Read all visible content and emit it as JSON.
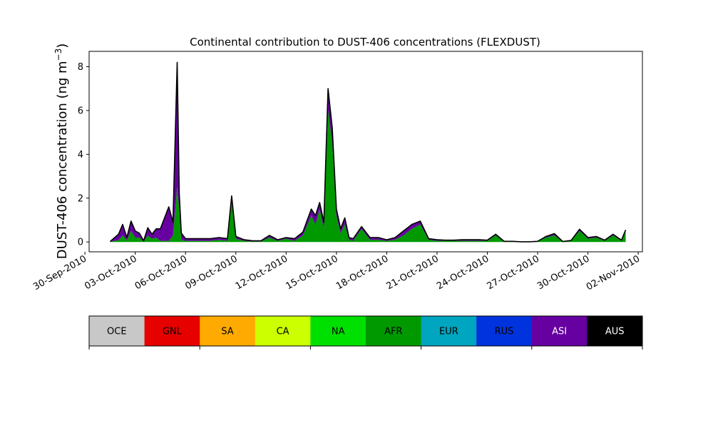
{
  "chart_data": {
    "type": "area",
    "title": "Continental contribution to DUST-406 concentrations (FLEXDUST)",
    "ylabel": "DUST-406 concentration (ng m",
    "ylabel_sup": "−3",
    "ylabel_close": ")",
    "xlabel": "",
    "ylim": [
      -0.45,
      8.7
    ],
    "y_ticks": [
      0,
      2,
      4,
      6,
      8
    ],
    "xlim": [
      "2010-09-30T06:00",
      "2010-11-02T06:00"
    ],
    "x_ticks": [
      "2010-09-30",
      "2010-10-03",
      "2010-10-06",
      "2010-10-09",
      "2010-10-12",
      "2010-10-15",
      "2010-10-18",
      "2010-10-21",
      "2010-10-24",
      "2010-10-27",
      "2010-10-30",
      "2010-11-02"
    ],
    "x_tick_labels": [
      "30-Sep-2010",
      "03-Oct-2010",
      "06-Oct-2010",
      "09-Oct-2010",
      "12-Oct-2010",
      "15-Oct-2010",
      "18-Oct-2010",
      "21-Oct-2010",
      "24-Oct-2010",
      "27-Oct-2010",
      "30-Oct-2010",
      "02-Nov-2010"
    ],
    "grid": false,
    "x": [
      "2010-10-01T12:00",
      "2010-10-02T00:00",
      "2010-10-02T06:00",
      "2010-10-02T12:00",
      "2010-10-02T18:00",
      "2010-10-03T00:00",
      "2010-10-03T06:00",
      "2010-10-03T12:00",
      "2010-10-03T18:00",
      "2010-10-04T00:00",
      "2010-10-04T06:00",
      "2010-10-04T12:00",
      "2010-10-05T00:00",
      "2010-10-05T06:00",
      "2010-10-05T12:00",
      "2010-10-05T15:00",
      "2010-10-05T18:00",
      "2010-10-06T00:00",
      "2010-10-06T12:00",
      "2010-10-07T00:00",
      "2010-10-07T12:00",
      "2010-10-08T00:00",
      "2010-10-08T12:00",
      "2010-10-08T18:00",
      "2010-10-09T00:00",
      "2010-10-09T12:00",
      "2010-10-10T00:00",
      "2010-10-10T12:00",
      "2010-10-11T00:00",
      "2010-10-11T12:00",
      "2010-10-12T00:00",
      "2010-10-12T12:00",
      "2010-10-13T00:00",
      "2010-10-13T12:00",
      "2010-10-13T18:00",
      "2010-10-14T00:00",
      "2010-10-14T06:00",
      "2010-10-14T12:00",
      "2010-10-14T18:00",
      "2010-10-15T00:00",
      "2010-10-15T06:00",
      "2010-10-15T12:00",
      "2010-10-15T18:00",
      "2010-10-16T00:00",
      "2010-10-16T12:00",
      "2010-10-17T00:00",
      "2010-10-17T12:00",
      "2010-10-18T00:00",
      "2010-10-18T12:00",
      "2010-10-19T00:00",
      "2010-10-19T12:00",
      "2010-10-20T00:00",
      "2010-10-20T12:00",
      "2010-10-21T00:00",
      "2010-10-21T12:00",
      "2010-10-22T00:00",
      "2010-10-22T12:00",
      "2010-10-23T00:00",
      "2010-10-23T12:00",
      "2010-10-24T00:00",
      "2010-10-24T12:00",
      "2010-10-25T00:00",
      "2010-10-25T12:00",
      "2010-10-26T00:00",
      "2010-10-26T12:00",
      "2010-10-27T00:00",
      "2010-10-27T12:00",
      "2010-10-28T00:00",
      "2010-10-28T12:00",
      "2010-10-29T00:00",
      "2010-10-29T12:00",
      "2010-10-30T00:00",
      "2010-10-30T12:00",
      "2010-10-31T00:00",
      "2010-10-31T12:00",
      "2010-11-01T00:00",
      "2010-11-01T06:00"
    ],
    "series": [
      {
        "name": "OCE",
        "color": "#c8c8c8",
        "values": [
          0,
          0,
          0,
          0,
          0,
          0,
          0,
          0,
          0,
          0,
          0,
          0,
          0,
          0,
          0,
          0,
          0,
          0,
          0,
          0,
          0,
          0,
          0,
          0,
          0,
          0,
          0,
          0,
          0,
          0,
          0,
          0,
          0,
          0,
          0,
          0,
          0,
          0,
          0,
          0,
          0,
          0,
          0,
          0,
          0,
          0,
          0,
          0,
          0,
          0,
          0,
          0,
          0,
          0,
          0,
          0,
          0,
          0,
          0,
          0,
          0,
          0,
          0,
          0,
          0,
          0,
          0,
          0,
          0,
          0,
          0,
          0,
          0,
          0,
          0,
          0,
          0
        ]
      },
      {
        "name": "GNL",
        "color": "#e60000",
        "values": [
          0,
          0,
          0,
          0,
          0,
          0,
          0,
          0,
          0,
          0,
          0,
          0,
          0,
          0,
          0,
          0,
          0,
          0,
          0,
          0,
          0,
          0,
          0,
          0,
          0,
          0,
          0,
          0,
          0,
          0,
          0,
          0,
          0,
          0,
          0,
          0,
          0,
          0,
          0,
          0,
          0,
          0,
          0,
          0,
          0,
          0,
          0,
          0,
          0,
          0,
          0,
          0,
          0,
          0,
          0,
          0,
          0,
          0,
          0,
          0,
          0,
          0,
          0,
          0,
          0,
          0,
          0,
          0,
          0,
          0,
          0,
          0,
          0,
          0,
          0,
          0,
          0
        ]
      },
      {
        "name": "SA",
        "color": "#ffaa00",
        "values": [
          0,
          0,
          0,
          0,
          0,
          0,
          0,
          0,
          0,
          0,
          0,
          0,
          0,
          0,
          0,
          0,
          0,
          0,
          0,
          0,
          0,
          0,
          0,
          0,
          0,
          0,
          0,
          0,
          0,
          0,
          0,
          0,
          0,
          0,
          0,
          0,
          0,
          0,
          0,
          0,
          0,
          0,
          0,
          0,
          0,
          0,
          0,
          0,
          0,
          0,
          0,
          0,
          0,
          0,
          0,
          0,
          0,
          0,
          0,
          0,
          0,
          0,
          0,
          0,
          0,
          0,
          0,
          0,
          0,
          0,
          0,
          0,
          0,
          0,
          0,
          0,
          0
        ]
      },
      {
        "name": "CA",
        "color": "#ccff00",
        "values": [
          0,
          0,
          0,
          0,
          0,
          0,
          0,
          0,
          0,
          0,
          0,
          0,
          0,
          0,
          0,
          0,
          0,
          0,
          0,
          0,
          0,
          0,
          0,
          0,
          0,
          0,
          0,
          0,
          0,
          0,
          0,
          0,
          0,
          0,
          0,
          0,
          0,
          0,
          0,
          0,
          0,
          0,
          0,
          0,
          0,
          0,
          0,
          0,
          0,
          0,
          0,
          0,
          0,
          0,
          0,
          0,
          0,
          0,
          0,
          0,
          0,
          0,
          0,
          0,
          0,
          0,
          0,
          0,
          0,
          0,
          0,
          0,
          0,
          0,
          0,
          0,
          0
        ]
      },
      {
        "name": "NA",
        "color": "#00e000",
        "values": [
          0,
          0,
          0,
          0,
          0,
          0,
          0,
          0,
          0,
          0,
          0,
          0,
          0,
          0,
          0,
          0,
          0,
          0,
          0,
          0,
          0,
          0,
          0,
          0,
          0,
          0,
          0,
          0,
          0,
          0,
          0,
          0,
          0,
          0,
          0,
          0,
          0,
          0,
          0,
          0,
          0,
          0,
          0,
          0,
          0,
          0,
          0,
          0,
          0,
          0,
          0,
          0,
          0,
          0,
          0,
          0,
          0,
          0,
          0,
          0,
          0,
          0,
          0,
          0,
          0,
          0,
          0,
          0,
          0,
          0,
          0,
          0,
          0,
          0,
          0,
          0,
          0
        ]
      },
      {
        "name": "AFR",
        "color": "#009900",
        "values": [
          0.02,
          0.08,
          0.3,
          0.08,
          0.5,
          0.2,
          0.2,
          0.02,
          0.3,
          0.15,
          0.2,
          0.05,
          0.05,
          0.3,
          2.5,
          1.5,
          0.1,
          0.05,
          0.05,
          0.05,
          0.05,
          0.1,
          0.05,
          1.8,
          0.15,
          0.05,
          0.02,
          0.02,
          0.2,
          0.05,
          0.15,
          0.05,
          0.3,
          1.2,
          0.8,
          1.5,
          0.6,
          6.0,
          4.5,
          1.2,
          0.4,
          0.8,
          0.1,
          0.05,
          0.6,
          0.1,
          0.1,
          0.05,
          0.1,
          0.3,
          0.6,
          0.8,
          0.1,
          0.05,
          0.05,
          0.05,
          0.05,
          0.05,
          0.05,
          0.05,
          0.3,
          0.02,
          0.02,
          0.01,
          0.01,
          0.02,
          0.2,
          0.3,
          0.02,
          0.05,
          0.5,
          0.15,
          0.2,
          0.05,
          0.3,
          0.05,
          0.5
        ]
      },
      {
        "name": "EUR",
        "color": "#00a5bf",
        "values": [
          0,
          0,
          0,
          0,
          0,
          0,
          0,
          0,
          0,
          0,
          0,
          0,
          0,
          0,
          0,
          0,
          0,
          0,
          0,
          0,
          0,
          0,
          0,
          0,
          0,
          0,
          0,
          0,
          0,
          0,
          0,
          0,
          0,
          0,
          0,
          0,
          0,
          0,
          0,
          0,
          0,
          0,
          0,
          0,
          0,
          0,
          0,
          0,
          0,
          0,
          0,
          0,
          0,
          0,
          0,
          0,
          0,
          0,
          0,
          0,
          0,
          0,
          0,
          0,
          0,
          0,
          0,
          0,
          0,
          0,
          0,
          0,
          0,
          0,
          0,
          0,
          0
        ]
      },
      {
        "name": "RUS",
        "color": "#0033dd",
        "values": [
          0,
          0,
          0,
          0,
          0,
          0,
          0,
          0,
          0,
          0,
          0,
          0,
          0,
          0,
          0,
          0,
          0,
          0,
          0,
          0,
          0,
          0,
          0,
          0,
          0,
          0,
          0,
          0,
          0,
          0,
          0,
          0,
          0,
          0,
          0,
          0,
          0,
          0,
          0,
          0,
          0,
          0,
          0,
          0,
          0,
          0,
          0,
          0,
          0,
          0,
          0,
          0,
          0,
          0,
          0,
          0,
          0,
          0,
          0,
          0,
          0,
          0,
          0,
          0,
          0,
          0,
          0,
          0,
          0,
          0,
          0,
          0,
          0,
          0,
          0,
          0,
          0
        ]
      },
      {
        "name": "ASI",
        "color": "#6600a0",
        "values": [
          0,
          0.27,
          0.5,
          0.12,
          0.45,
          0.3,
          0.2,
          0.03,
          0.35,
          0.2,
          0.4,
          0.55,
          1.55,
          0.6,
          5.7,
          0.7,
          0.3,
          0.1,
          0.1,
          0.1,
          0.1,
          0.1,
          0.1,
          0.3,
          0.1,
          0.05,
          0.03,
          0.03,
          0.1,
          0.05,
          0.05,
          0.1,
          0.15,
          0.3,
          0.4,
          0.3,
          0.3,
          1.0,
          0.7,
          0.3,
          0.2,
          0.3,
          0.1,
          0.1,
          0.1,
          0.1,
          0.1,
          0.05,
          0.1,
          0.2,
          0.2,
          0.15,
          0.05,
          0.05,
          0.03,
          0.03,
          0.05,
          0.05,
          0.05,
          0.03,
          0.05,
          0.01,
          0.01,
          0,
          0,
          0.01,
          0.05,
          0.08,
          0,
          0.02,
          0.08,
          0.05,
          0.05,
          0.03,
          0.05,
          0.03,
          0.05
        ]
      },
      {
        "name": "AUS",
        "color": "#000000",
        "values": [
          0,
          0,
          0,
          0,
          0,
          0,
          0,
          0,
          0,
          0,
          0,
          0,
          0,
          0,
          0,
          0,
          0,
          0,
          0,
          0,
          0,
          0,
          0,
          0,
          0,
          0,
          0,
          0,
          0,
          0,
          0,
          0,
          0,
          0,
          0,
          0,
          0,
          0,
          0,
          0,
          0,
          0,
          0,
          0,
          0,
          0,
          0,
          0,
          0,
          0,
          0,
          0,
          0,
          0,
          0,
          0,
          0,
          0,
          0,
          0,
          0,
          0,
          0,
          0,
          0,
          0,
          0,
          0,
          0,
          0,
          0,
          0,
          0,
          0,
          0,
          0,
          0
        ]
      }
    ],
    "total_line_color": "#000000",
    "legend": {
      "placement": "bottom colorbar",
      "labels": [
        "OCE",
        "GNL",
        "SA",
        "CA",
        "NA",
        "AFR",
        "EUR",
        "RUS",
        "ASI",
        "AUS"
      ],
      "label_colors": [
        "#000000",
        "#000000",
        "#000000",
        "#000000",
        "#000000",
        "#000000",
        "#000000",
        "#000000",
        "#ffffff",
        "#ffffff"
      ]
    }
  }
}
